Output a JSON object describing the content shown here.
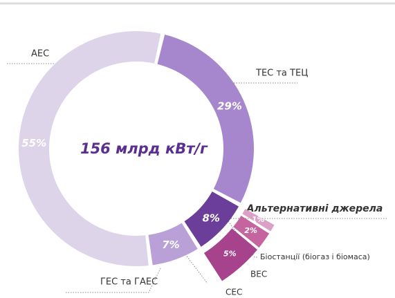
{
  "chart_data": {
    "type": "pie",
    "title": "156 млрд кВт/г",
    "categories": [
      "ТЕС та ТЕЦ",
      "Альтернативні джерела",
      "ГЕС та ГАЕС",
      "АЕС"
    ],
    "values": [
      29,
      8,
      7,
      55
    ],
    "value_labels": [
      "29%",
      "8%",
      "7%",
      "55%"
    ],
    "colors": [
      "#a687cd",
      "#6b3f99",
      "#b9a1d8",
      "#ddd4ea"
    ],
    "breakdown": {
      "categories": [
        "Біостанції (біогаз і біомаса)",
        "ВЕС",
        "СЕС"
      ],
      "values": [
        1,
        2,
        5
      ],
      "value_labels": [
        "1%",
        "2%",
        "5%"
      ],
      "colors": [
        "#dca0c7",
        "#c5659f",
        "#a7428d"
      ]
    }
  }
}
